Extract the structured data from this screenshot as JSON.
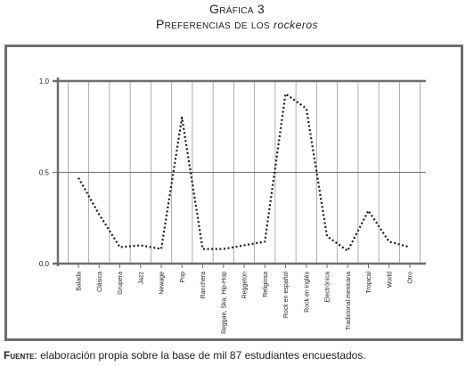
{
  "title": "Gráfica 3",
  "subtitle_prefix": "Preferencias de los",
  "subtitle_emph": "rockeros",
  "source": {
    "lead": "Fuente",
    "text": ": elaboración propia sobre la base de mil 87 estudiantes encuestados."
  },
  "colors": {
    "axis": "#6e6e6e",
    "grid": "#9a9a9a",
    "line": "#1a1a1a"
  },
  "chart_data": {
    "type": "line",
    "line_style": "dotted",
    "grid": true,
    "categories": [
      "Balada",
      "Clásica",
      "Grupera",
      "Jazz",
      "Newage",
      "Pop",
      "Ranchera",
      "Reggae, Ska, Hip-Hop",
      "Reggeton",
      "Religiosa",
      "Rock en español",
      "Rock en inglés",
      "Electrónica",
      "Tradicional mexicana",
      "Tropical",
      "World",
      "Otro"
    ],
    "values": [
      0.47,
      0.27,
      0.09,
      0.1,
      0.08,
      0.8,
      0.08,
      0.08,
      0.1,
      0.12,
      0.93,
      0.85,
      0.15,
      0.07,
      0.29,
      0.12,
      0.09
    ],
    "yticks": [
      "0.0",
      "0.5",
      "1.0"
    ],
    "ylim": [
      0,
      1
    ],
    "title": "",
    "xlabel": "",
    "ylabel": ""
  }
}
